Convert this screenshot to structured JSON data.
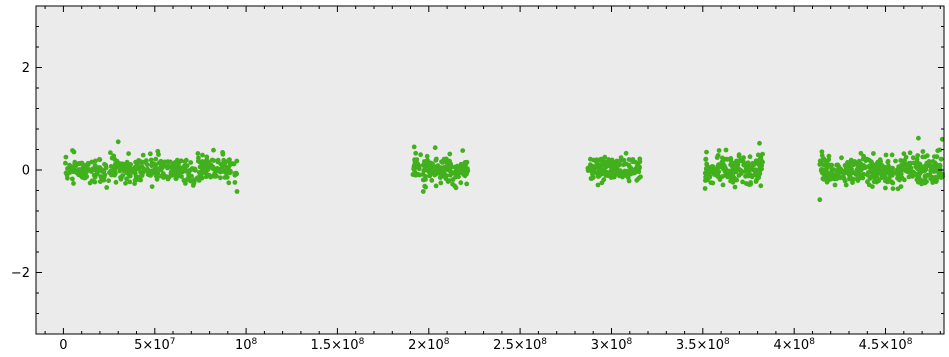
{
  "chart_data": {
    "type": "scatter",
    "title": "",
    "xlabel": "",
    "ylabel": "",
    "xlim": [
      -15000000,
      482000000
    ],
    "ylim": [
      -3.2,
      3.2
    ],
    "grid": false,
    "background_color": "#ebebeb",
    "point_color": "#41b01c",
    "x_ticks": [
      {
        "value": 0,
        "base": "0",
        "exp": ""
      },
      {
        "value": 50000000,
        "base": "5×10",
        "exp": "7"
      },
      {
        "value": 100000000,
        "base": "10",
        "exp": "8"
      },
      {
        "value": 150000000,
        "base": "1.5×10",
        "exp": "8"
      },
      {
        "value": 200000000,
        "base": "2×10",
        "exp": "8"
      },
      {
        "value": 250000000,
        "base": "2.5×10",
        "exp": "8"
      },
      {
        "value": 300000000,
        "base": "3×10",
        "exp": "8"
      },
      {
        "value": 350000000,
        "base": "3.5×10",
        "exp": "8"
      },
      {
        "value": 400000000,
        "base": "4×10",
        "exp": "8"
      },
      {
        "value": 450000000,
        "base": "4.5×10",
        "exp": "8"
      }
    ],
    "y_ticks": [
      {
        "value": 2,
        "label": "2"
      },
      {
        "value": 0,
        "label": "0"
      },
      {
        "value": -2,
        "label": "−2"
      }
    ],
    "clusters": [
      {
        "x_start": 1000000,
        "x_end": 95000000,
        "n": 420,
        "sd": 0.13,
        "outliers": [
          [
            30000000,
            0.55
          ],
          [
            95000000,
            -0.42
          ],
          [
            5000000,
            0.38
          ]
        ]
      },
      {
        "x_start": 191000000,
        "x_end": 222000000,
        "n": 170,
        "sd": 0.13,
        "outliers": [
          [
            192000000,
            0.45
          ],
          [
            197000000,
            -0.42
          ]
        ]
      },
      {
        "x_start": 287000000,
        "x_end": 316000000,
        "n": 160,
        "sd": 0.11,
        "outliers": []
      },
      {
        "x_start": 351000000,
        "x_end": 383000000,
        "n": 180,
        "sd": 0.14,
        "outliers": [
          [
            381000000,
            0.52
          ],
          [
            352000000,
            0.35
          ]
        ]
      },
      {
        "x_start": 414000000,
        "x_end": 482000000,
        "n": 380,
        "sd": 0.15,
        "outliers": [
          [
            414000000,
            -0.58
          ],
          [
            468000000,
            0.62
          ],
          [
            481000000,
            0.6
          ]
        ]
      }
    ]
  }
}
